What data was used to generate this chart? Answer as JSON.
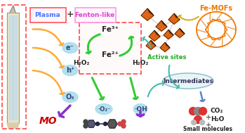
{
  "bg_color": "#ffffff",
  "plasma_box_color": "#ff5555",
  "fenton_box_outer_color": "#ff99dd",
  "fenton_inner_box_color": "#ff5555",
  "plasma_label": "Plasma",
  "plasma_label_color": "#4477ff",
  "plus_sign": "+",
  "fenton_label": "Fenton-like",
  "fenton_label_color": "#dd44cc",
  "fe3_label": "Fe³⁺",
  "fe2_label": "Fe²⁺",
  "h2o2_left": "H₂O₂",
  "h2o2_right": "H₂O₂",
  "e_label": "e⁻",
  "h_label": "h⁺",
  "o3_label": "O₃",
  "o2rad_label": "·O₂⁻",
  "oh_label": "·OH",
  "mo_label": "MO",
  "mo_color": "#cc0000",
  "active_sites_label": "Active sites",
  "active_sites_color": "#22aa22",
  "femofs_label": "Fe-MOFs",
  "femofs_color": "#ee7700",
  "intermediates_label": "Intermediates",
  "co2_label": "CO₂",
  "h2o_label": "H₂O",
  "small_mol_label": "Small molecules",
  "arrow_orange_color": "#ffaa33",
  "arrow_green_color": "#33cc33",
  "arrow_purple_color": "#8833cc",
  "arrow_teal_color": "#44bbaa",
  "arrow_yellow_color": "#ddaa22",
  "bubble_color": "#aaddee",
  "bubble_text_color": "#334477",
  "figsize": [
    3.49,
    1.89
  ],
  "dpi": 100
}
